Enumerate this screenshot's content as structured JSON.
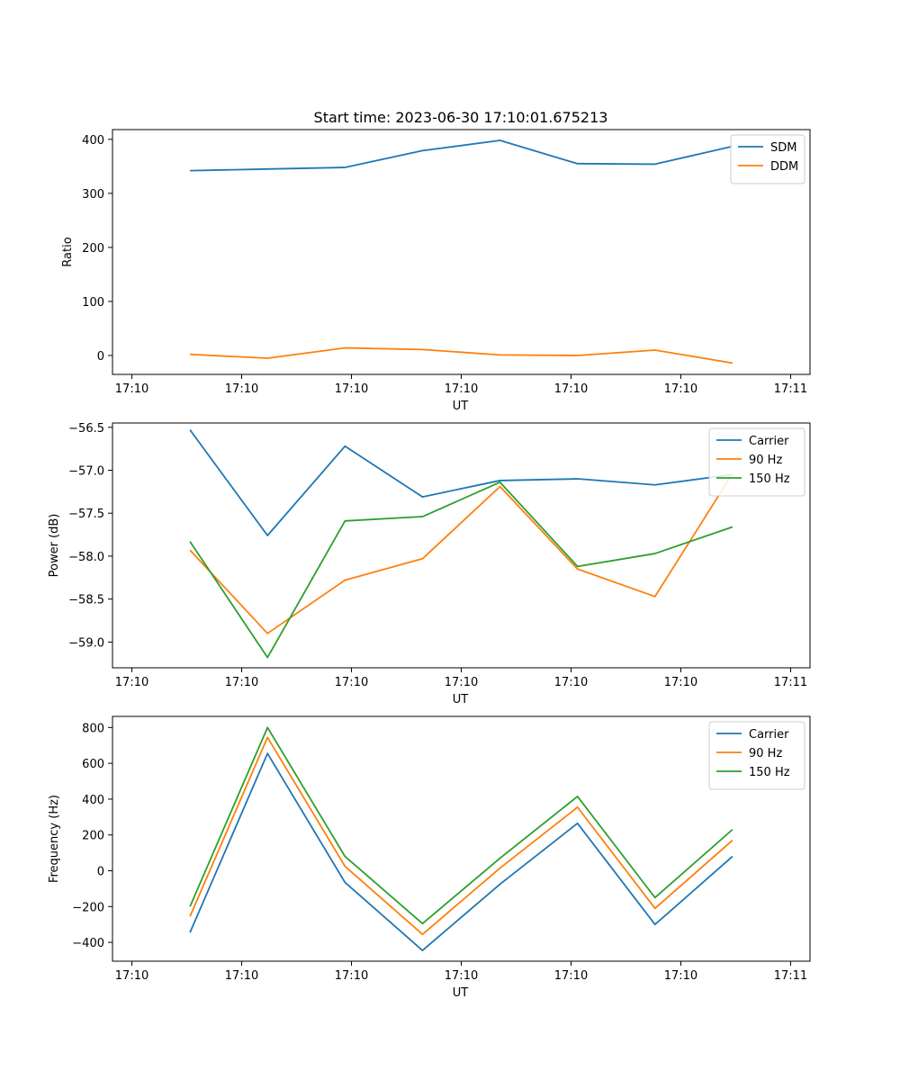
{
  "title": "Start time: 2023-06-30 17:10:01.675213",
  "xtick_labels": [
    "17:10",
    "17:10",
    "17:10",
    "17:10",
    "17:10",
    "17:10",
    "17:11"
  ],
  "colors": {
    "blue": "#1f77b4",
    "orange": "#ff7f0e",
    "green": "#2ca02c"
  },
  "chart_data": [
    {
      "type": "line",
      "xlabel": "UT",
      "ylabel": "Ratio",
      "x": [
        0.5,
        1.0,
        1.5,
        2.0,
        2.5,
        3.0,
        3.5,
        4.0
      ],
      "xlim": [
        0.0,
        4.5
      ],
      "ylim": [
        -35,
        418
      ],
      "yticks": [
        0,
        100,
        200,
        300,
        400
      ],
      "ytick_labels": [
        "0",
        "100",
        "200",
        "300",
        "400"
      ],
      "legend_position": "top-right",
      "series": [
        {
          "name": "SDM",
          "color": "blue",
          "values": [
            342,
            345,
            348,
            379,
            398,
            355,
            354,
            387
          ]
        },
        {
          "name": "DDM",
          "color": "orange",
          "values": [
            2,
            -5,
            14,
            11,
            1,
            0,
            10,
            -14
          ]
        }
      ]
    },
    {
      "type": "line",
      "xlabel": "UT",
      "ylabel": "Power (dB)",
      "x": [
        0.5,
        1.0,
        1.5,
        2.0,
        2.5,
        3.0,
        3.5,
        4.0
      ],
      "xlim": [
        0.0,
        4.5
      ],
      "ylim": [
        -59.3,
        -56.45
      ],
      "yticks": [
        -59.0,
        -58.5,
        -58.0,
        -57.5,
        -57.0,
        -56.5
      ],
      "ytick_labels": [
        "−59.0",
        "−58.5",
        "−58.0",
        "−57.5",
        "−57.0",
        "−56.5"
      ],
      "legend_position": "top-right",
      "series": [
        {
          "name": "Carrier",
          "color": "blue",
          "values": [
            -56.53,
            -57.76,
            -56.72,
            -57.31,
            -57.12,
            -57.1,
            -57.17,
            -57.05
          ]
        },
        {
          "name": "90 Hz",
          "color": "orange",
          "values": [
            -57.93,
            -58.9,
            -58.28,
            -58.03,
            -57.19,
            -58.15,
            -58.47,
            -57.04
          ]
        },
        {
          "name": "150 Hz",
          "color": "green",
          "values": [
            -57.83,
            -59.18,
            -57.59,
            -57.54,
            -57.14,
            -58.12,
            -57.97,
            -57.66
          ]
        }
      ]
    },
    {
      "type": "line",
      "xlabel": "UT",
      "ylabel": "Frequency (Hz)",
      "x": [
        0.5,
        1.0,
        1.5,
        2.0,
        2.5,
        3.0,
        3.5,
        4.0
      ],
      "xlim": [
        0.0,
        4.5
      ],
      "ylim": [
        -505,
        862
      ],
      "yticks": [
        -400,
        -200,
        0,
        200,
        400,
        600,
        800
      ],
      "ytick_labels": [
        "−400",
        "−200",
        "0",
        "200",
        "400",
        "600",
        "800"
      ],
      "legend_position": "top-right",
      "series": [
        {
          "name": "Carrier",
          "color": "blue",
          "values": [
            -345,
            655,
            -65,
            -445,
            -75,
            265,
            -300,
            80
          ]
        },
        {
          "name": "90 Hz",
          "color": "orange",
          "values": [
            -255,
            745,
            25,
            -355,
            15,
            355,
            -210,
            170
          ]
        },
        {
          "name": "150 Hz",
          "color": "green",
          "values": [
            -200,
            800,
            80,
            -295,
            70,
            415,
            -150,
            230
          ]
        }
      ]
    }
  ]
}
